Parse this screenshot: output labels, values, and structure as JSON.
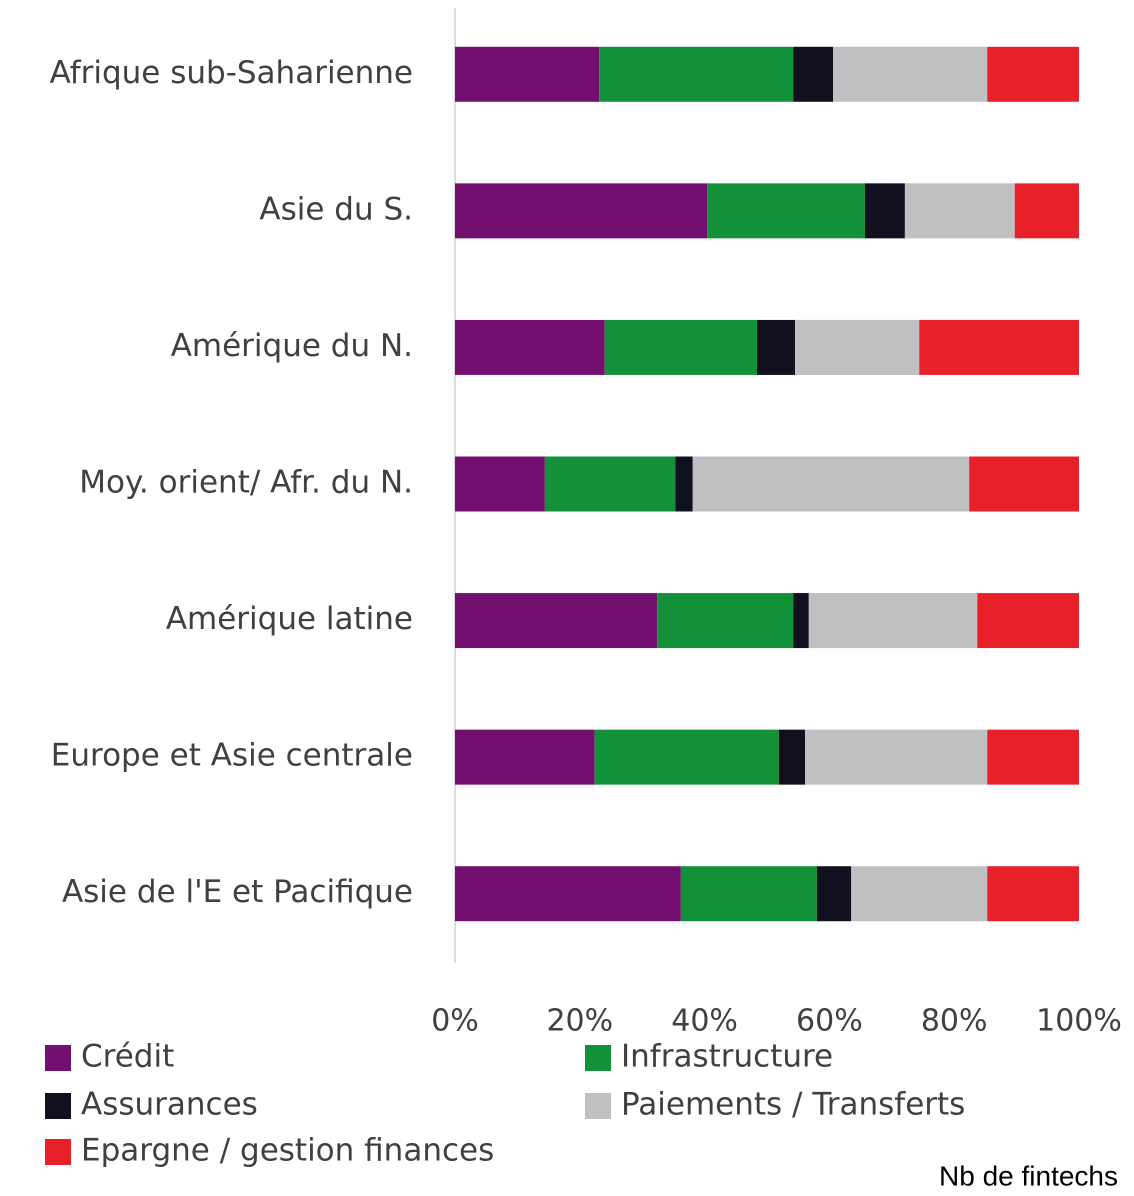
{
  "chart_data": {
    "type": "stacked_barh",
    "categories": [
      "Afrique sub-Saharienne",
      "Asie du S.",
      "Amérique du N.",
      "Moy. orient/ Afr. du N.",
      "Amérique latine",
      "Europe et Asie centrale",
      "Asie de l'E et Pacifique"
    ],
    "series": [
      {
        "name": "Crédit",
        "color": "#730f6f",
        "values": [
          23.1,
          40.4,
          24.0,
          14.4,
          32.4,
          22.4,
          36.2
        ]
      },
      {
        "name": "Infrastructure",
        "color": "#139138",
        "values": [
          31.1,
          25.3,
          24.4,
          20.9,
          21.8,
          29.5,
          21.8
        ]
      },
      {
        "name": "Assurances",
        "color": "#10101f",
        "values": [
          6.4,
          6.4,
          6.1,
          2.8,
          2.5,
          4.2,
          5.5
        ]
      },
      {
        "name": "Paiements / Transferts",
        "color": "#bfc0c2",
        "values": [
          24.7,
          17.6,
          19.9,
          44.3,
          27.0,
          29.2,
          21.8
        ]
      },
      {
        "name": "Epargne / gestion finances",
        "color": "#e8202a",
        "values": [
          14.7,
          10.3,
          25.6,
          17.6,
          16.3,
          14.7,
          14.7
        ]
      }
    ],
    "xlim": [
      0,
      100
    ],
    "xticks": [
      {
        "value": 0,
        "label": "0%"
      },
      {
        "value": 20,
        "label": "20%"
      },
      {
        "value": 40,
        "label": "40%"
      },
      {
        "value": 60,
        "label": "60%"
      },
      {
        "value": 80,
        "label": "80%"
      },
      {
        "value": 100,
        "label": "100%"
      }
    ],
    "annotation": "Nb de fintechs"
  }
}
